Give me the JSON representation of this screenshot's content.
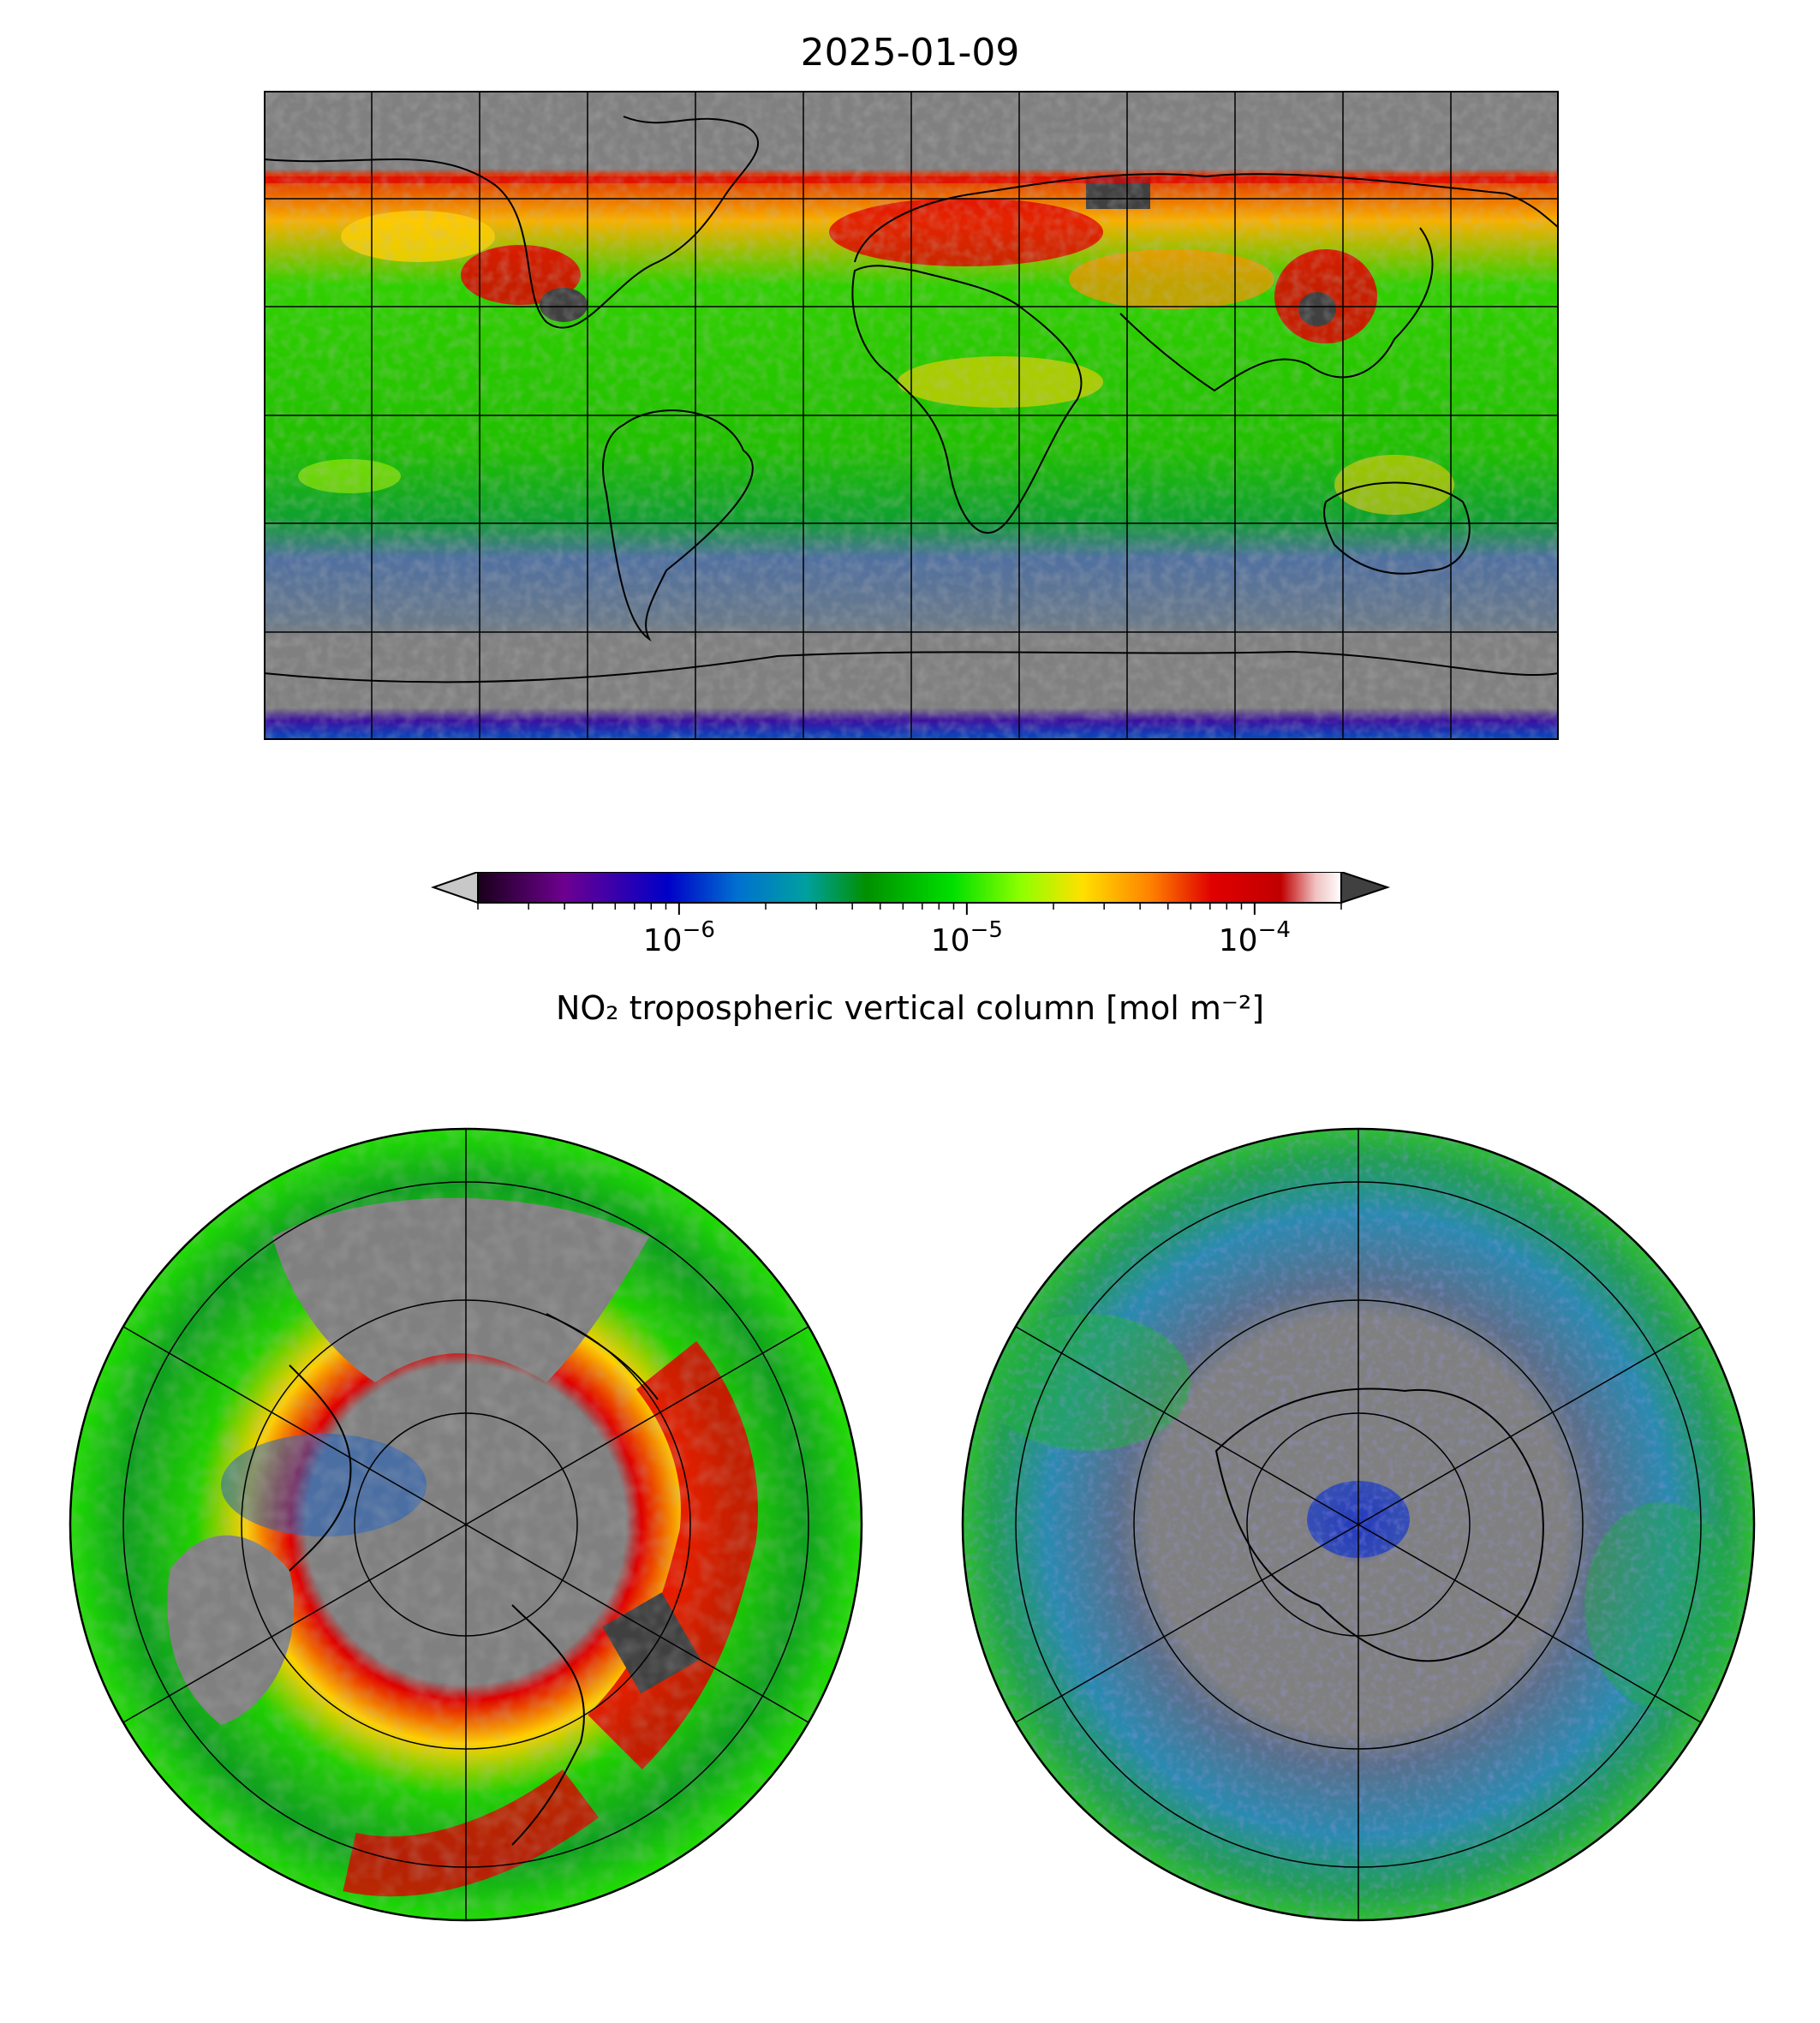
{
  "title": "2025-01-09",
  "colorbar": {
    "label": "NO₂ tropospheric vertical column [mol m⁻²]",
    "scale": "log",
    "range": [
      2e-07,
      0.0002
    ],
    "extend": "both",
    "under_color": "#c8c8c8",
    "over_color": "#404040",
    "ticks": [
      {
        "base": "10",
        "exp": "−6",
        "value": 1e-06
      },
      {
        "base": "10",
        "exp": "−5",
        "value": 1e-05
      },
      {
        "base": "10",
        "exp": "−4",
        "value": 0.0001
      }
    ],
    "stops": [
      "#1a001a",
      "#6e0090",
      "#0000c8",
      "#0070d0",
      "#00a0a0",
      "#009000",
      "#00e000",
      "#90ff00",
      "#ffe000",
      "#ff8000",
      "#e00000",
      "#c00000",
      "#f0c0c0",
      "#ffffff"
    ]
  },
  "maps": [
    {
      "name": "global",
      "projection": "PlateCarree"
    },
    {
      "name": "north-polar",
      "projection": "NorthPolarStereo"
    },
    {
      "name": "south-polar",
      "projection": "SouthPolarStereo"
    }
  ],
  "colors": {
    "missing": "#808080",
    "background": "#ffffff"
  }
}
